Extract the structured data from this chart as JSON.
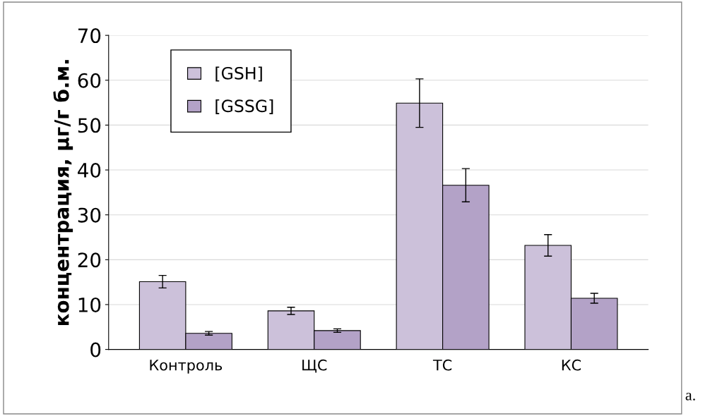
{
  "chart_data": {
    "type": "bar",
    "ylabel": "концентрация, µг/г б.м.",
    "categories": [
      "Контроль",
      "ЩС",
      "ТС",
      "КС"
    ],
    "series": [
      {
        "name": "[GSH]",
        "color": "#ccc1da",
        "values": [
          15.1,
          8.6,
          54.9,
          23.2
        ],
        "errors": [
          1.4,
          0.8,
          5.4,
          2.4
        ]
      },
      {
        "name": "[GSSG]",
        "color": "#b3a2c7",
        "values": [
          3.6,
          4.2,
          36.6,
          11.4
        ],
        "errors": [
          0.4,
          0.4,
          3.7,
          1.1
        ]
      }
    ],
    "ylim": [
      0,
      70
    ],
    "yticks": [
      0,
      10,
      20,
      30,
      40,
      50,
      60,
      70
    ],
    "grid": "y",
    "legend": "top left",
    "annotations": [
      "а."
    ]
  }
}
